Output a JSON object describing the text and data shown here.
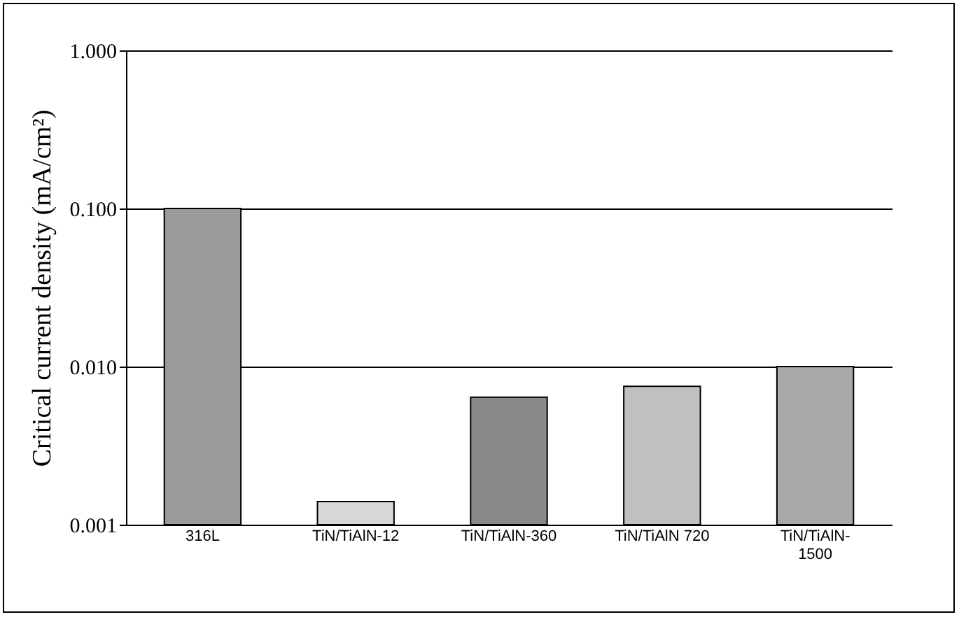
{
  "chart_data": {
    "type": "bar",
    "ylabel": "Critical current density (mA/cm²)",
    "categories": [
      "316L",
      "TiN/TiAlN-12",
      "TiN/TiAlN-360",
      "TiN/TiAlN 720",
      "TiN/TiAlN-1500"
    ],
    "values": [
      0.1,
      0.0014,
      0.0064,
      0.0075,
      0.01
    ],
    "colors": [
      "#9a9a9a",
      "#d8d8d8",
      "#8a8a8a",
      "#c0c0c0",
      "#a8a8a8"
    ],
    "log": true,
    "ylim": [
      0.001,
      1
    ],
    "yticks": [
      {
        "value": 0.001,
        "label": "0.001"
      },
      {
        "value": 0.01,
        "label": "0.010"
      },
      {
        "value": 0.1,
        "label": "0.100"
      },
      {
        "value": 1,
        "label": "1.000"
      }
    ],
    "grid": "y"
  }
}
